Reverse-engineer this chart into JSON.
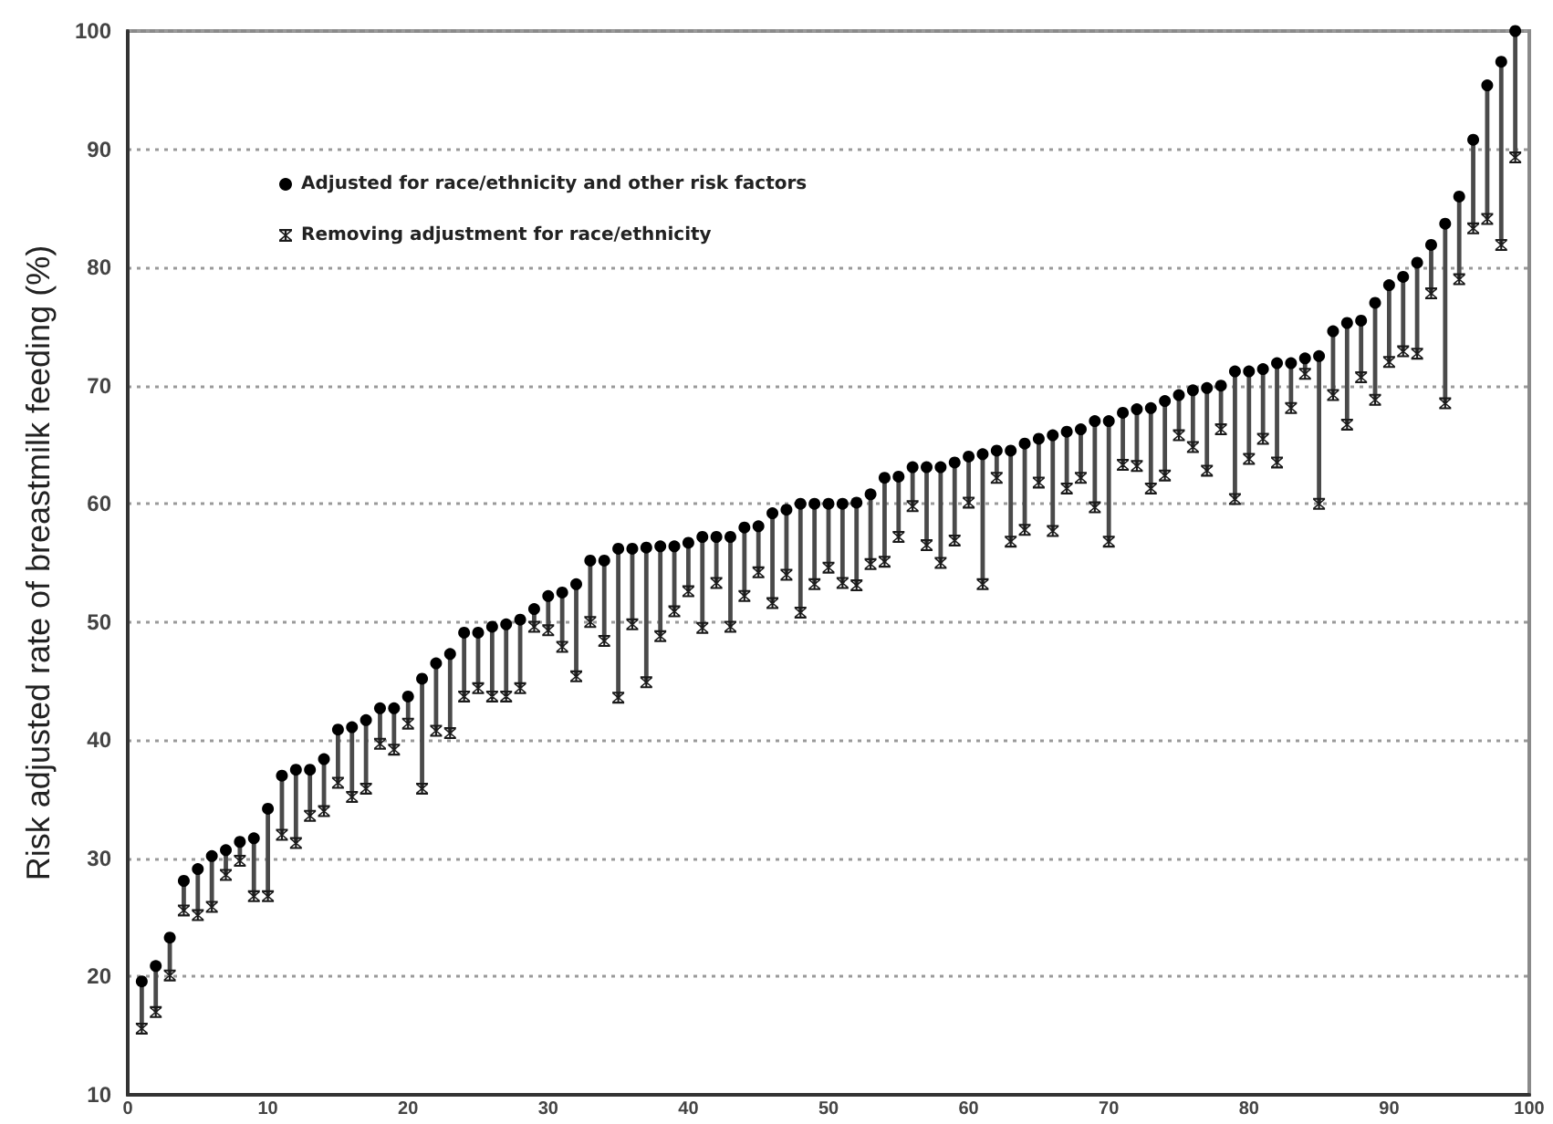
{
  "chart_data": {
    "type": "scatter",
    "ylabel": "Risk adjusted rate of breastmilk feeding (%)",
    "x": [
      1,
      2,
      3,
      4,
      5,
      6,
      7,
      8,
      9,
      10,
      11,
      12,
      13,
      14,
      15,
      16,
      17,
      18,
      19,
      20,
      21,
      22,
      23,
      24,
      25,
      26,
      27,
      28,
      29,
      30,
      31,
      32,
      33,
      34,
      35,
      36,
      37,
      38,
      39,
      40,
      41,
      42,
      43,
      44,
      45,
      46,
      47,
      48,
      49,
      50,
      51,
      52,
      53,
      54,
      55,
      56,
      57,
      58,
      59,
      60,
      61,
      62,
      63,
      64,
      65,
      66,
      67,
      68,
      69,
      70,
      71,
      72,
      73,
      74,
      75,
      76,
      77,
      78,
      79,
      80,
      81,
      82,
      83,
      84,
      85,
      86,
      87,
      88,
      89,
      90,
      91,
      92,
      93,
      94,
      95,
      96,
      97,
      98,
      99
    ],
    "series": [
      {
        "name": "Adjusted for race/ethnicity and other risk factors",
        "color": "#000000",
        "marker": "circle",
        "values": [
          19.6,
          20.9,
          23.3,
          28.1,
          29.1,
          30.2,
          30.7,
          31.4,
          31.7,
          34.2,
          37.0,
          37.5,
          37.5,
          38.4,
          40.9,
          41.1,
          41.7,
          42.7,
          42.7,
          43.7,
          45.2,
          46.5,
          47.3,
          49.1,
          49.1,
          49.6,
          49.8,
          50.2,
          51.1,
          52.2,
          52.5,
          53.2,
          55.2,
          55.2,
          56.2,
          56.2,
          56.3,
          56.4,
          56.4,
          56.7,
          57.2,
          57.2,
          57.2,
          58.0,
          58.1,
          59.2,
          59.5,
          60.0,
          60.0,
          60.0,
          60.0,
          60.1,
          60.8,
          62.2,
          62.3,
          63.1,
          63.1,
          63.1,
          63.5,
          64.0,
          64.2,
          64.5,
          64.5,
          65.1,
          65.5,
          65.8,
          66.1,
          66.3,
          67.0,
          67.0,
          67.7,
          68.0,
          68.1,
          68.7,
          69.2,
          69.6,
          69.8,
          70.0,
          71.2,
          71.2,
          71.4,
          71.9,
          71.9,
          72.3,
          72.5,
          74.6,
          75.3,
          75.5,
          77.0,
          78.5,
          79.2,
          80.4,
          81.9,
          83.7,
          86.0,
          90.8,
          95.4,
          97.4,
          100
        ],
        "errors": [
          [
            15.6,
            19.6
          ],
          [
            17.0,
            20.9
          ],
          [
            20.1,
            23.3
          ],
          [
            25.6,
            28.1
          ],
          [
            25.2,
            29.1
          ],
          [
            25.9,
            30.2
          ],
          [
            28.6,
            30.7
          ],
          [
            29.8,
            31.4
          ],
          [
            26.8,
            31.7
          ],
          [
            26.8,
            34.2
          ],
          [
            32.0,
            37.0
          ],
          [
            31.3,
            37.5
          ],
          [
            33.6,
            37.5
          ],
          [
            34.0,
            38.4
          ],
          [
            36.4,
            40.9
          ],
          [
            35.2,
            41.1
          ],
          [
            35.9,
            41.7
          ],
          [
            39.7,
            42.7
          ],
          [
            39.2,
            42.7
          ],
          [
            41.4,
            43.7
          ],
          [
            35.9,
            45.2
          ],
          [
            40.8,
            46.5
          ],
          [
            40.6,
            47.3
          ],
          [
            43.7,
            49.1
          ],
          [
            44.4,
            49.1
          ],
          [
            43.7,
            49.6
          ],
          [
            43.7,
            49.8
          ],
          [
            44.4,
            50.2
          ],
          [
            49.6,
            51.1
          ],
          [
            49.3,
            52.2
          ],
          [
            47.9,
            52.5
          ],
          [
            45.4,
            53.2
          ],
          [
            50.0,
            55.2
          ],
          [
            48.4,
            55.2
          ],
          [
            43.6,
            56.2
          ],
          [
            49.8,
            56.2
          ],
          [
            44.9,
            56.3
          ],
          [
            48.8,
            56.4
          ],
          [
            50.9,
            56.4
          ],
          [
            52.6,
            56.7
          ],
          [
            49.5,
            57.2
          ],
          [
            53.3,
            57.2
          ],
          [
            49.6,
            57.2
          ],
          [
            52.2,
            58.0
          ],
          [
            54.2,
            58.1
          ],
          [
            51.6,
            59.2
          ],
          [
            54.0,
            59.5
          ],
          [
            50.8,
            60.0
          ],
          [
            53.2,
            60.0
          ],
          [
            54.6,
            60.0
          ],
          [
            53.3,
            60.0
          ],
          [
            53.1,
            60.1
          ],
          [
            54.9,
            60.8
          ],
          [
            55.1,
            62.2
          ],
          [
            57.2,
            62.3
          ],
          [
            59.8,
            63.1
          ],
          [
            56.5,
            63.1
          ],
          [
            55.0,
            63.1
          ],
          [
            56.9,
            63.5
          ],
          [
            60.1,
            64.0
          ],
          [
            53.2,
            64.2
          ],
          [
            62.2,
            64.5
          ],
          [
            56.8,
            64.5
          ],
          [
            57.8,
            65.1
          ],
          [
            61.8,
            65.5
          ],
          [
            57.7,
            65.8
          ],
          [
            61.3,
            66.1
          ],
          [
            62.2,
            66.3
          ],
          [
            59.7,
            67.0
          ],
          [
            56.8,
            67.0
          ],
          [
            63.3,
            67.7
          ],
          [
            63.2,
            68.0
          ],
          [
            61.3,
            68.1
          ],
          [
            62.4,
            68.7
          ],
          [
            65.8,
            69.2
          ],
          [
            64.8,
            69.6
          ],
          [
            62.8,
            69.8
          ],
          [
            66.3,
            70.0
          ],
          [
            60.4,
            71.2
          ],
          [
            63.8,
            71.2
          ],
          [
            65.5,
            71.4
          ],
          [
            63.5,
            71.9
          ],
          [
            68.1,
            71.9
          ],
          [
            71.0,
            72.3
          ],
          [
            60.0,
            72.5
          ],
          [
            69.2,
            74.6
          ],
          [
            66.7,
            75.3
          ],
          [
            70.7,
            75.5
          ],
          [
            68.8,
            77.0
          ],
          [
            72.0,
            78.5
          ],
          [
            72.9,
            79.2
          ],
          [
            72.7,
            80.4
          ],
          [
            77.8,
            81.9
          ],
          [
            68.5,
            83.7
          ],
          [
            79.0,
            86.0
          ],
          [
            83.3,
            90.8
          ],
          [
            84.1,
            95.4
          ],
          [
            81.9,
            97.4
          ],
          [
            89.3,
            100
          ]
        ]
      },
      {
        "name": "Removing adjustment for race/ethnicity",
        "color": "#1a1a1a",
        "marker": "star",
        "values": [
          15.6,
          17.0,
          20.1,
          25.6,
          25.2,
          25.9,
          28.6,
          29.8,
          26.8,
          26.8,
          32.0,
          31.3,
          33.6,
          34.0,
          36.4,
          35.2,
          35.9,
          39.7,
          39.2,
          41.4,
          35.9,
          40.8,
          40.6,
          43.7,
          44.4,
          43.7,
          43.7,
          44.4,
          49.6,
          49.3,
          47.9,
          45.4,
          50.0,
          48.4,
          43.6,
          49.8,
          44.9,
          48.8,
          50.9,
          52.6,
          49.5,
          53.3,
          49.6,
          52.2,
          54.2,
          51.6,
          54.0,
          50.8,
          53.2,
          54.6,
          53.3,
          53.1,
          54.9,
          55.1,
          57.2,
          59.8,
          56.5,
          55.0,
          56.9,
          60.1,
          53.2,
          62.2,
          56.8,
          57.8,
          61.8,
          57.7,
          61.3,
          62.2,
          59.7,
          56.8,
          63.3,
          63.2,
          61.3,
          62.4,
          65.8,
          64.8,
          62.8,
          66.3,
          60.4,
          63.8,
          65.5,
          63.5,
          68.1,
          71.0,
          60.0,
          69.2,
          66.7,
          70.7,
          68.8,
          72.0,
          72.9,
          72.7,
          77.8,
          68.5,
          79.0,
          83.3,
          84.1,
          81.9,
          89.3
        ]
      }
    ],
    "xlim": [
      0,
      100
    ],
    "xticks": [
      0,
      10,
      20,
      30,
      40,
      50,
      60,
      70,
      80,
      90,
      100
    ],
    "ylim": [
      10,
      100
    ],
    "yticks": [
      10,
      20,
      30,
      40,
      50,
      60,
      70,
      80,
      90,
      100
    ],
    "grid": "y",
    "legend": "top left"
  }
}
